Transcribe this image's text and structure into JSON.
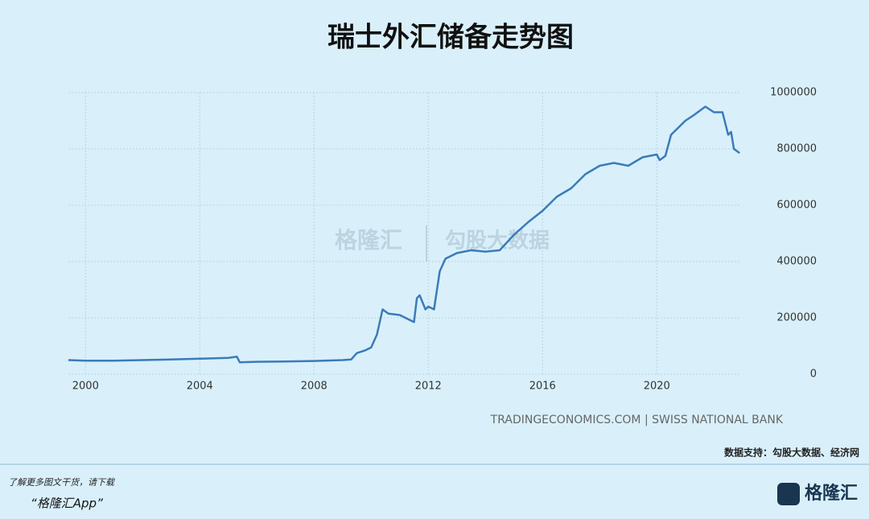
{
  "chart_data": {
    "type": "line",
    "title": "瑞士外汇储备走势图",
    "x": [
      1999.4,
      2000,
      2001,
      2002,
      2003,
      2004,
      2005,
      2005.3,
      2005.4,
      2006,
      2007,
      2008,
      2009,
      2009.3,
      2009.5,
      2009.8,
      2010,
      2010.2,
      2010.4,
      2010.6,
      2011,
      2011.5,
      2011.6,
      2011.7,
      2011.9,
      2012,
      2012.2,
      2012.4,
      2012.6,
      2013,
      2013.5,
      2014,
      2014.5,
      2015,
      2015.5,
      2016,
      2016.5,
      2017,
      2017.5,
      2018,
      2018.5,
      2019,
      2019.5,
      2020,
      2020.1,
      2020.3,
      2020.5,
      2021,
      2021.3,
      2021.7,
      2022,
      2022.3,
      2022.5,
      2022.6,
      2022.7,
      2022.9
    ],
    "values": [
      50000,
      48000,
      48000,
      50000,
      52000,
      55000,
      58000,
      62000,
      42000,
      44000,
      45000,
      47000,
      50000,
      52000,
      75000,
      85000,
      95000,
      140000,
      230000,
      215000,
      210000,
      185000,
      270000,
      280000,
      230000,
      240000,
      230000,
      365000,
      410000,
      430000,
      440000,
      435000,
      440000,
      495000,
      540000,
      580000,
      630000,
      660000,
      710000,
      740000,
      750000,
      740000,
      770000,
      780000,
      760000,
      775000,
      850000,
      900000,
      920000,
      950000,
      930000,
      930000,
      850000,
      860000,
      800000,
      785000
    ],
    "color": "#3b7bb9",
    "xlim": [
      1999.4,
      2022.95
    ],
    "xticks": [
      2000,
      2004,
      2008,
      2012,
      2016,
      2020
    ],
    "ylim": [
      0,
      1000000
    ],
    "yticks": [
      0,
      200000,
      400000,
      600000,
      800000,
      1000000
    ],
    "grid": true,
    "source": "TRADINGECONOMICS.COM | SWISS NATIONAL BANK",
    "support": "数据支持：勾股大数据、经济网",
    "promo": "了解更多图文干货，请下载",
    "app": "“格隆汇App”",
    "logo": "格隆汇",
    "watermark_left": "格隆汇",
    "watermark_right": "勾股大数据"
  }
}
